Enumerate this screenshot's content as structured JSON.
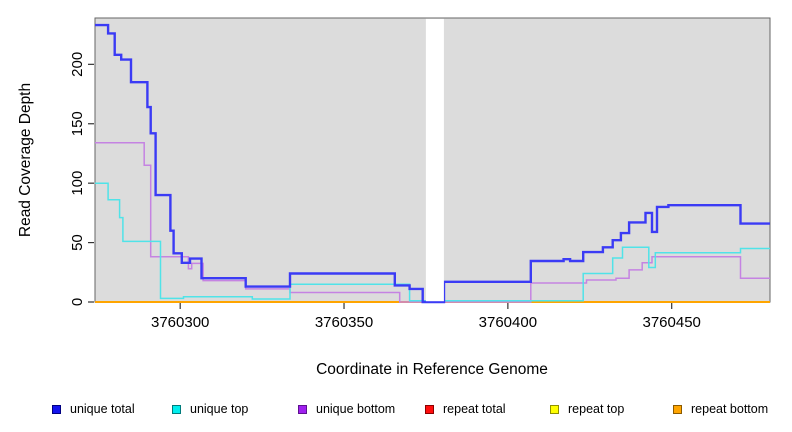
{
  "figure": {
    "background": "#FFFFFF",
    "panel_background": "#DCDCDC",
    "panel_border_color": "#666666",
    "masked_band_color": "#FFFFFF"
  },
  "chart_data": {
    "type": "line",
    "subtype": "step-coverage",
    "title": "",
    "xlabel": "Coordinate in Reference Genome",
    "ylabel": "Read Coverage Depth",
    "xlim": [
      3760274,
      3760480
    ],
    "ylim": [
      0,
      239
    ],
    "grid": false,
    "legend_position": "bottom",
    "x_ticks": [
      {
        "value": 3760300,
        "label": "3760300"
      },
      {
        "value": 3760350,
        "label": "3760350"
      },
      {
        "value": 3760400,
        "label": "3760400"
      },
      {
        "value": 3760450,
        "label": "3760450"
      }
    ],
    "y_ticks": [
      {
        "value": 0,
        "label": "0"
      },
      {
        "value": 50,
        "label": "50"
      },
      {
        "value": 100,
        "label": "100"
      },
      {
        "value": 150,
        "label": "150"
      },
      {
        "value": 200,
        "label": "200"
      }
    ],
    "masked_region": {
      "x_start": 3760375,
      "x_end": 3760380.5
    },
    "series": [
      {
        "name": "repeat total",
        "color": "#DD2222",
        "width": 1.5,
        "points": [
          [
            3760274,
            0
          ],
          [
            3760480,
            0
          ]
        ]
      },
      {
        "name": "repeat top",
        "color": "#FFFF33",
        "width": 1.5,
        "points": [
          [
            3760274,
            0
          ],
          [
            3760480,
            0
          ]
        ]
      },
      {
        "name": "repeat bottom",
        "color": "#FFA500",
        "width": 1.9,
        "points": [
          [
            3760274,
            0
          ],
          [
            3760480,
            0
          ]
        ]
      },
      {
        "name": "unique bottom",
        "color": "#C583E2",
        "width": 1.5,
        "points": [
          [
            3760274,
            134
          ],
          [
            3760289,
            115
          ],
          [
            3760291,
            38
          ],
          [
            3760302.5,
            28
          ],
          [
            3760303.5,
            32.5
          ],
          [
            3760307,
            18
          ],
          [
            3760320,
            11
          ],
          [
            3760333.5,
            8
          ],
          [
            3760367,
            0
          ],
          [
            3760407,
            16
          ],
          [
            3760424,
            18.5
          ],
          [
            3760433,
            20
          ],
          [
            3760437,
            27
          ],
          [
            3760441,
            33
          ],
          [
            3760444,
            38
          ],
          [
            3760471,
            20
          ],
          [
            3760480,
            20
          ]
        ]
      },
      {
        "name": "unique top",
        "color": "#50E3E8",
        "width": 1.5,
        "points": [
          [
            3760274,
            100
          ],
          [
            3760278,
            86
          ],
          [
            3760281.5,
            71
          ],
          [
            3760282.5,
            51
          ],
          [
            3760294,
            3
          ],
          [
            3760301,
            4.5
          ],
          [
            3760322,
            2.5
          ],
          [
            3760333.5,
            15
          ],
          [
            3760370,
            1
          ],
          [
            3760423,
            24
          ],
          [
            3760432,
            37
          ],
          [
            3760435,
            46
          ],
          [
            3760443,
            29
          ],
          [
            3760445,
            41.5
          ],
          [
            3760471,
            45
          ],
          [
            3760480,
            45
          ]
        ]
      },
      {
        "name": "unique total",
        "color": "#3B3BF5",
        "width": 2.4,
        "points": [
          [
            3760274,
            233
          ],
          [
            3760278,
            226
          ],
          [
            3760280,
            208
          ],
          [
            3760282,
            204
          ],
          [
            3760285,
            185
          ],
          [
            3760290,
            164
          ],
          [
            3760291,
            142
          ],
          [
            3760292.5,
            90
          ],
          [
            3760297,
            60
          ],
          [
            3760298,
            41
          ],
          [
            3760300.5,
            33
          ],
          [
            3760303,
            36.5
          ],
          [
            3760306.5,
            20
          ],
          [
            3760320,
            13
          ],
          [
            3760333.5,
            24
          ],
          [
            3760365.5,
            14
          ],
          [
            3760370,
            11
          ],
          [
            3760374,
            0
          ],
          [
            3760380.5,
            17
          ],
          [
            3760407,
            34.5
          ],
          [
            3760417,
            36
          ],
          [
            3760419,
            34.5
          ],
          [
            3760423,
            42
          ],
          [
            3760429,
            46
          ],
          [
            3760432,
            52
          ],
          [
            3760434.5,
            58
          ],
          [
            3760437,
            67
          ],
          [
            3760442,
            75
          ],
          [
            3760444,
            59
          ],
          [
            3760445.5,
            80
          ],
          [
            3760449,
            81.5
          ],
          [
            3760471,
            66
          ],
          [
            3760480,
            66
          ]
        ]
      }
    ],
    "legend": {
      "items": [
        {
          "label": "unique total",
          "fill": "#1414EE",
          "border": "#000080"
        },
        {
          "label": "unique top",
          "fill": "#00EEEE",
          "border": "#007B7B"
        },
        {
          "label": "unique bottom",
          "fill": "#A020F0",
          "border": "#5E128F"
        },
        {
          "label": "repeat total",
          "fill": "#FF0D0D",
          "border": "#8B0000"
        },
        {
          "label": "repeat top",
          "fill": "#FFFF00",
          "border": "#909000"
        },
        {
          "label": "repeat bottom",
          "fill": "#FFA500",
          "border": "#8B5A00"
        }
      ]
    }
  }
}
